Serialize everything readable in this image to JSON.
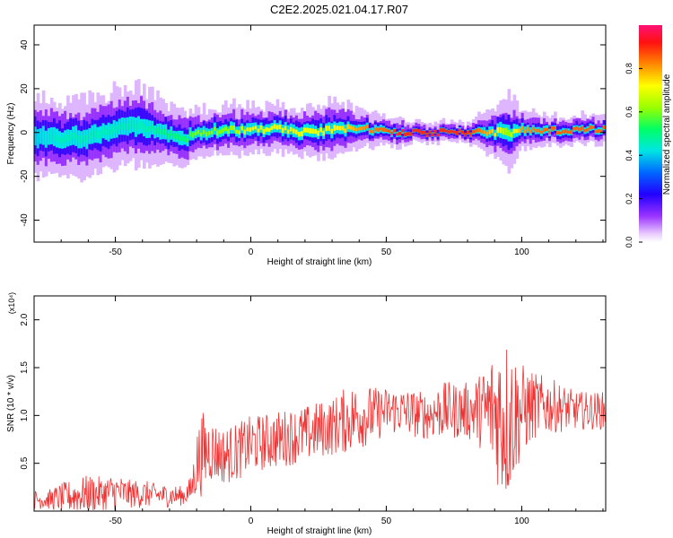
{
  "title": "C2E2.2025.021.04.17.R07",
  "colorbar": {
    "label": "Normalized spectral amplitude",
    "ticks": [
      "0.0",
      "0.2",
      "0.4",
      "0.6",
      "0.8"
    ],
    "tick_values": [
      0.0,
      0.2,
      0.4,
      0.6,
      0.8
    ],
    "range": [
      0,
      1
    ]
  },
  "chart_data": [
    {
      "type": "heatmap",
      "xlabel": "Height of straight line (km)",
      "ylabel": "Frequency (Hz)",
      "xlim": [
        -80,
        131
      ],
      "ylim": [
        -50,
        49
      ],
      "xticks": [
        "-50",
        "0",
        "50",
        "100"
      ],
      "xtick_values": [
        -50,
        0,
        50,
        100
      ],
      "yticks": [
        "-40",
        "-20",
        "0",
        "20",
        "40"
      ],
      "ytick_values": [
        -40,
        -20,
        0,
        20,
        40
      ],
      "ridge": {
        "x": [
          -80,
          -70,
          -60,
          -50,
          -40,
          -30,
          -25,
          -20,
          -10,
          0,
          10,
          20,
          30,
          40,
          50,
          55,
          60,
          70,
          80,
          90,
          95,
          100,
          110,
          120,
          131
        ],
        "frequency": [
          -2,
          -3,
          -2,
          2,
          3,
          -1,
          -4,
          0,
          1,
          1,
          2,
          0,
          1,
          2,
          1,
          0,
          0,
          0,
          0,
          0,
          0,
          1,
          1,
          1,
          2
        ],
        "spread": [
          8,
          8,
          8,
          8,
          8,
          6,
          6,
          5,
          5,
          5,
          5,
          5,
          6,
          4,
          3,
          3,
          2,
          2,
          2,
          5,
          8,
          4,
          3,
          3,
          3
        ],
        "peak_amplitude": [
          0.4,
          0.45,
          0.45,
          0.45,
          0.45,
          0.5,
          0.5,
          0.6,
          0.6,
          0.7,
          0.7,
          0.7,
          0.7,
          0.8,
          0.85,
          0.9,
          0.9,
          0.9,
          0.9,
          0.75,
          0.6,
          0.8,
          0.85,
          0.85,
          0.85
        ]
      }
    },
    {
      "type": "line",
      "xlabel": "Height of straight line (km)",
      "ylabel": "SNR (10 * v/v)",
      "scale_label": "(x10⁴)",
      "xlim": [
        -80,
        131
      ],
      "ylim": [
        0,
        2.25
      ],
      "xticks": [
        "-50",
        "0",
        "50",
        "100"
      ],
      "xtick_values": [
        -50,
        0,
        50,
        100
      ],
      "yticks": [
        "0.5",
        "1.0",
        "1.5",
        "2.0"
      ],
      "ytick_values": [
        0.5,
        1.0,
        1.5,
        2.0
      ],
      "series": [
        {
          "color": "#ee3333",
          "x": [
            -80,
            -75,
            -70,
            -65,
            -60,
            -55,
            -50,
            -45,
            -40,
            -35,
            -30,
            -25,
            -22,
            -20,
            -18,
            -15,
            -12,
            -10,
            -5,
            0,
            5,
            10,
            15,
            20,
            25,
            30,
            35,
            40,
            45,
            50,
            55,
            60,
            65,
            70,
            75,
            80,
            85,
            90,
            93,
            95,
            97,
            100,
            105,
            110,
            115,
            120,
            125,
            131
          ],
          "mean": [
            0.12,
            0.12,
            0.14,
            0.16,
            0.18,
            0.18,
            0.2,
            0.18,
            0.18,
            0.17,
            0.16,
            0.16,
            0.22,
            0.5,
            0.6,
            0.65,
            0.6,
            0.58,
            0.62,
            0.7,
            0.72,
            0.75,
            0.78,
            0.8,
            0.85,
            0.88,
            0.95,
            1.0,
            1.0,
            1.05,
            1.05,
            1.02,
            1.0,
            1.05,
            1.05,
            1.05,
            1.05,
            1.05,
            1.0,
            0.95,
            1.0,
            1.05,
            1.1,
            1.1,
            1.08,
            1.05,
            1.05,
            1.05
          ],
          "amplitude": [
            0.1,
            0.1,
            0.15,
            0.18,
            0.2,
            0.18,
            0.2,
            0.15,
            0.15,
            0.12,
            0.12,
            0.1,
            0.15,
            0.35,
            0.45,
            0.35,
            0.3,
            0.3,
            0.3,
            0.3,
            0.3,
            0.3,
            0.3,
            0.3,
            0.3,
            0.3,
            0.35,
            0.35,
            0.3,
            0.25,
            0.25,
            0.25,
            0.25,
            0.3,
            0.3,
            0.3,
            0.4,
            0.7,
            0.9,
            0.9,
            0.7,
            0.5,
            0.35,
            0.3,
            0.25,
            0.2,
            0.2,
            0.2
          ]
        }
      ]
    }
  ]
}
